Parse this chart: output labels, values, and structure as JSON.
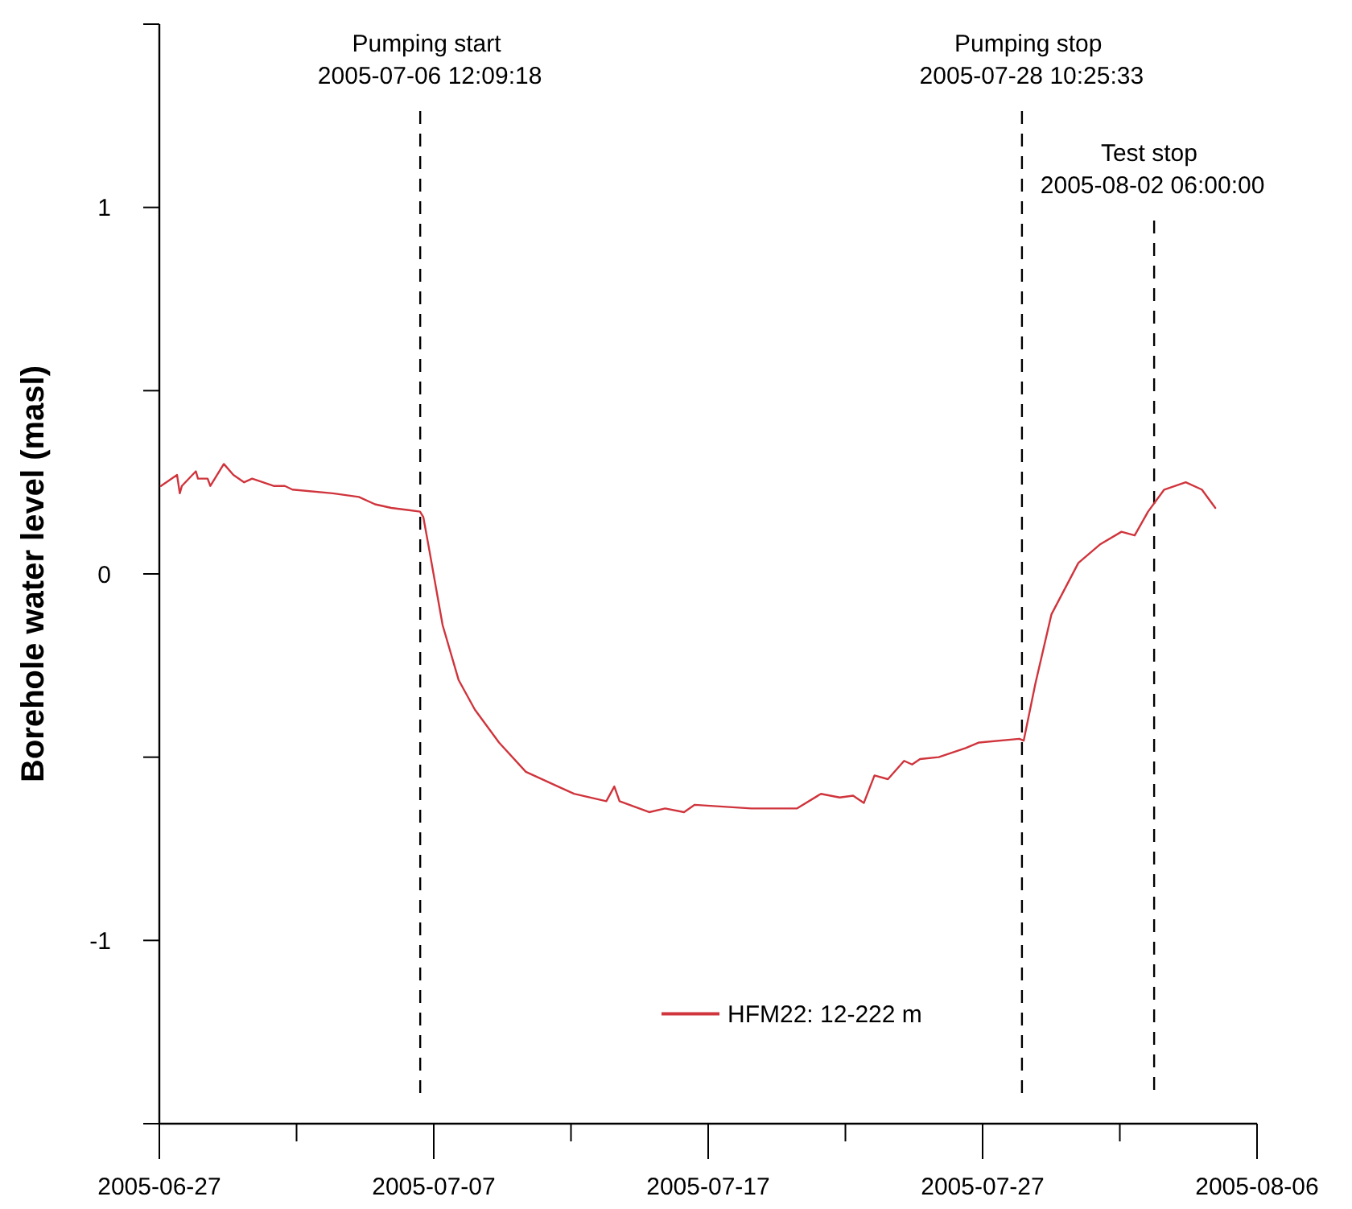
{
  "chart_data": {
    "type": "line",
    "ylabel": "Borehole water level (masl)",
    "xlim": [
      "2005-06-27",
      "2005-08-06"
    ],
    "xticks": [
      "2005-06-27",
      {
        "value": "2005-07-02",
        "label": null
      },
      "2005-07-07",
      {
        "value": "2005-07-12",
        "label": null
      },
      "2005-07-17",
      {
        "value": "2005-07-22",
        "label": null
      },
      "2005-07-27",
      {
        "value": "2005-08-01",
        "label": null
      },
      "2005-08-06"
    ],
    "ylim": [
      -1.5,
      1.5
    ],
    "yticks": [
      {
        "value": -1.5,
        "label": null
      },
      -1,
      {
        "value": -0.5,
        "label": null
      },
      0,
      {
        "value": 0.5,
        "label": null
      },
      1,
      {
        "value": 1.5,
        "label": null
      }
    ],
    "grid": false,
    "legend": "bottom",
    "line_style": "solid",
    "ref_lines": [
      {
        "axis": "x",
        "value": "2005-07-06T12:09",
        "label": "Pumping start\n2005-07-06 12:09:18",
        "line_style": "dashed",
        "color": "#000000"
      },
      {
        "axis": "x",
        "value": "2005-07-28T10:25",
        "label": "Pumping stop\n2005-07-28 10:25:33",
        "line_style": "dashed",
        "color": "#000000"
      },
      {
        "axis": "x",
        "value": "2005-08-02T06:00",
        "label": "Test stop\n2005-08-02 06:00:00",
        "line_style": "dashed",
        "color": "#000000"
      }
    ],
    "series": [
      {
        "name": "HFM22: 12-222 m",
        "color": "#d0343c",
        "x": [
          "2005-06-27T01:24",
          "2005-06-27T15:30",
          "2005-06-27T17:53",
          "2005-06-27T19:42",
          "2005-06-28T07:56",
          "2005-06-28T09:47",
          "2005-06-28T18:13",
          "2005-06-28T20:37",
          "2005-06-29T08:24",
          "2005-06-29T16:45",
          "2005-06-30T02:10",
          "2005-06-30T09:10",
          "2005-07-01T03:56",
          "2005-07-01T13:47",
          "2005-07-01T20:24",
          "2005-07-03T07:40",
          "2005-07-04T06:30",
          "2005-07-04T20:38",
          "2005-07-05T10:48",
          "2005-07-06T12:00",
          "2005-07-06T14:53",
          "2005-07-06T20:06",
          "2005-07-07T07:46",
          "2005-07-07T21:49",
          "2005-07-08T11:54",
          "2005-07-09T09:05",
          "2005-07-10T08:32",
          "2005-07-11T12:38",
          "2005-07-12T02:40",
          "2005-07-13T06:54",
          "2005-07-13T13:54",
          "2005-07-13T18:28",
          "2005-07-14T20:22",
          "2005-07-15T10:22",
          "2005-07-16T02:53",
          "2005-07-16T12:14",
          "2005-07-18T13:38",
          "2005-07-20T05:28",
          "2005-07-21T02:38",
          "2005-07-21T19:02",
          "2005-07-22T06:43",
          "2005-07-22T16:06",
          "2005-07-23T01:26",
          "2005-07-23T13:12",
          "2005-07-24T03:21",
          "2005-07-24T10:19",
          "2005-07-24T17:17",
          "2005-07-25T09:36",
          "2005-07-26T09:07",
          "2005-07-26T20:53",
          "2005-07-28T08:09",
          "2005-07-28T11:55",
          "2005-07-28T22:07",
          "2005-07-29T12:14",
          "2005-07-30T11:44",
          "2005-07-31T06:29",
          "2005-08-01T01:26",
          "2005-08-01T13:00",
          "2005-08-02T00:41",
          "2005-08-02T14:48",
          "2005-08-03T09:38",
          "2005-08-03T23:45",
          "2005-08-04T11:30"
        ],
        "values": [
          0.24,
          0.27,
          0.22,
          0.24,
          0.28,
          0.26,
          0.26,
          0.24,
          0.3,
          0.27,
          0.25,
          0.26,
          0.24,
          0.24,
          0.23,
          0.22,
          0.21,
          0.19,
          0.18,
          0.17,
          0.155,
          0.065,
          -0.14,
          -0.29,
          -0.37,
          -0.46,
          -0.54,
          -0.58,
          -0.6,
          -0.62,
          -0.58,
          -0.62,
          -0.65,
          -0.64,
          -0.65,
          -0.63,
          -0.64,
          -0.64,
          -0.6,
          -0.61,
          -0.605,
          -0.625,
          -0.55,
          -0.56,
          -0.51,
          -0.52,
          -0.505,
          -0.5,
          -0.475,
          -0.46,
          -0.45,
          -0.455,
          -0.3,
          -0.11,
          0.03,
          0.08,
          0.115,
          0.105,
          0.17,
          0.23,
          0.25,
          0.23,
          0.18
        ]
      }
    ]
  }
}
